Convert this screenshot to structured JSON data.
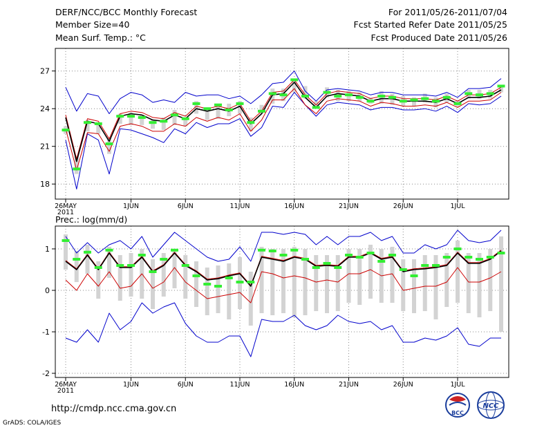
{
  "header": {
    "title": "DERF/NCC/BCC Monthly Forecast",
    "member_size": "Member Size=40",
    "variable": "Mean Surf. Temp.: °C",
    "period": "For 2011/05/26-2011/07/04",
    "start": "Fcst Started Refer Date 2011/05/25",
    "produced": "Fcst Produced Date 2011/05/26"
  },
  "x_axis": {
    "ticks": [
      {
        "day": 0,
        "label": "26MAY"
      },
      {
        "day": 6,
        "label": "1JUN"
      },
      {
        "day": 11,
        "label": "6JUN"
      },
      {
        "day": 16,
        "label": "11JUN"
      },
      {
        "day": 21,
        "label": "16JUN"
      },
      {
        "day": 26,
        "label": "21JUN"
      },
      {
        "day": 31,
        "label": "26JUN"
      },
      {
        "day": 36,
        "label": "1JUL"
      }
    ],
    "year_label": "2011"
  },
  "footer": {
    "url": "http://cmdp.ncc.cma.gov.cn",
    "credit": "GrADS: COLA/IGES",
    "logo_bcc": "BCC",
    "logo_ncc": "NCC"
  },
  "colors": {
    "envelope": "#0000cc",
    "ensemble_mean": "#000000",
    "inner_band": "#cc0000",
    "spread_bar": "#d3d3d3",
    "marker": "#33ee33",
    "grid": "#888888"
  },
  "chart_data": [
    {
      "type": "line",
      "title": "Mean Surf. Temp.: °C",
      "days": 40,
      "ylim": [
        16.8,
        28.8
      ],
      "yticks": [
        18,
        21,
        24,
        27
      ],
      "series": [
        {
          "name": "ensemble-mean",
          "values": [
            23.3,
            19.8,
            23.0,
            22.8,
            21.4,
            23.4,
            23.6,
            23.5,
            23.1,
            23.0,
            23.5,
            23.2,
            24.0,
            23.8,
            24.0,
            23.8,
            24.2,
            22.8,
            23.6,
            25.1,
            25.2,
            26.1,
            24.9,
            24.1,
            25.0,
            25.2,
            25.1,
            25.0,
            24.6,
            24.8,
            24.8,
            24.6,
            24.6,
            24.6,
            24.5,
            24.8,
            24.4,
            24.9,
            24.9,
            25.0,
            25.5
          ]
        },
        {
          "name": "upper-band",
          "values": [
            23.5,
            20.0,
            23.2,
            23.0,
            21.6,
            23.6,
            23.8,
            23.7,
            23.3,
            23.2,
            23.7,
            23.4,
            24.2,
            24.0,
            24.2,
            24.0,
            24.4,
            23.0,
            23.8,
            25.3,
            25.4,
            26.3,
            25.1,
            24.3,
            25.2,
            25.4,
            25.3,
            25.2,
            24.8,
            25.0,
            25.0,
            24.8,
            24.8,
            24.8,
            24.7,
            25.0,
            24.6,
            25.1,
            25.1,
            25.2,
            25.7
          ]
        },
        {
          "name": "lower-band",
          "values": [
            22.4,
            19.1,
            22.1,
            22.0,
            20.6,
            22.6,
            22.8,
            22.6,
            22.2,
            22.2,
            22.8,
            22.6,
            23.3,
            23.0,
            23.3,
            23.1,
            23.6,
            22.2,
            23.1,
            24.7,
            24.7,
            25.6,
            24.3,
            23.6,
            24.6,
            24.8,
            24.7,
            24.6,
            24.2,
            24.5,
            24.4,
            24.2,
            24.2,
            24.3,
            24.2,
            24.5,
            24.1,
            24.6,
            24.6,
            24.7,
            25.3
          ]
        },
        {
          "name": "max-envelope",
          "values": [
            25.7,
            23.8,
            25.2,
            25.0,
            23.6,
            24.8,
            25.3,
            25.1,
            24.5,
            24.7,
            24.5,
            25.3,
            25.0,
            25.1,
            25.1,
            24.8,
            25.0,
            24.4,
            25.1,
            26.0,
            26.1,
            27.0,
            25.4,
            24.6,
            25.5,
            25.6,
            25.5,
            25.4,
            25.1,
            25.3,
            25.3,
            25.1,
            25.1,
            25.1,
            25.0,
            25.3,
            24.9,
            25.6,
            25.6,
            25.7,
            26.4
          ]
        },
        {
          "name": "min-envelope",
          "values": [
            21.5,
            17.6,
            22.0,
            21.5,
            18.8,
            22.4,
            22.3,
            22.0,
            21.7,
            21.3,
            22.4,
            22.0,
            22.9,
            22.5,
            22.8,
            22.8,
            23.2,
            21.8,
            22.5,
            24.2,
            24.1,
            25.3,
            24.3,
            23.4,
            24.3,
            24.5,
            24.4,
            24.3,
            23.9,
            24.1,
            24.1,
            23.9,
            23.9,
            24.0,
            23.8,
            24.2,
            23.7,
            24.4,
            24.3,
            24.4,
            25.0
          ]
        },
        {
          "name": "spread-bar-top",
          "values": [
            22.6,
            20.2,
            23.1,
            22.9,
            21.7,
            23.6,
            23.7,
            23.5,
            23.1,
            23.3,
            23.9,
            23.3,
            24.6,
            23.9,
            24.4,
            24.4,
            24.6,
            23.3,
            24.3,
            25.6,
            25.6,
            26.4,
            25.8,
            24.6,
            25.7,
            25.5,
            25.4,
            25.3,
            24.9,
            25.4,
            25.2,
            25.0,
            24.9,
            25.2,
            24.9,
            25.2,
            24.7,
            25.5,
            25.5,
            25.5,
            25.9
          ]
        },
        {
          "name": "spread-bar-bottom",
          "values": [
            22.0,
            18.8,
            22.2,
            22.0,
            20.4,
            22.8,
            22.7,
            22.7,
            22.4,
            22.3,
            22.7,
            22.6,
            23.6,
            23.1,
            23.2,
            23.4,
            23.6,
            22.2,
            23.6,
            24.4,
            24.6,
            25.3,
            24.8,
            24.2,
            24.9,
            24.6,
            24.6,
            24.6,
            24.4,
            24.4,
            24.3,
            24.2,
            24.2,
            24.5,
            24.1,
            24.5,
            24.2,
            24.8,
            24.8,
            24.8,
            25.3
          ]
        },
        {
          "name": "green-marker",
          "values": [
            22.3,
            19.2,
            22.9,
            22.8,
            21.2,
            23.4,
            23.4,
            23.3,
            22.9,
            23.0,
            23.5,
            23.2,
            24.4,
            24.0,
            24.3,
            23.9,
            24.4,
            22.9,
            23.8,
            25.2,
            25.1,
            26.3,
            25.0,
            24.1,
            25.3,
            25.0,
            25.1,
            24.9,
            24.6,
            25.0,
            24.9,
            24.6,
            24.7,
            24.8,
            24.6,
            24.9,
            24.4,
            25.2,
            25.1,
            25.2,
            25.8
          ]
        }
      ]
    },
    {
      "type": "line",
      "title": "Prec.: log(mm/d)",
      "days": 40,
      "ylim": [
        -2.1,
        1.55
      ],
      "yticks": [
        -2,
        -1,
        0,
        1
      ],
      "series": [
        {
          "name": "ensemble-mean",
          "values": [
            0.7,
            0.5,
            0.85,
            0.5,
            0.9,
            0.55,
            0.55,
            0.8,
            0.45,
            0.6,
            0.9,
            0.6,
            0.45,
            0.25,
            0.28,
            0.35,
            0.4,
            0.1,
            0.8,
            0.75,
            0.7,
            0.8,
            0.75,
            0.58,
            0.6,
            0.58,
            0.8,
            0.8,
            0.9,
            0.75,
            0.8,
            0.45,
            0.5,
            0.52,
            0.55,
            0.6,
            0.9,
            0.65,
            0.65,
            0.75,
            0.95
          ]
        },
        {
          "name": "upper-band",
          "values": [
            0.72,
            0.52,
            0.87,
            0.52,
            0.92,
            0.57,
            0.57,
            0.82,
            0.47,
            0.62,
            0.92,
            0.62,
            0.47,
            0.27,
            0.3,
            0.37,
            0.42,
            0.12,
            0.82,
            0.77,
            0.72,
            0.82,
            0.77,
            0.6,
            0.62,
            0.6,
            0.82,
            0.82,
            0.92,
            0.77,
            0.82,
            0.47,
            0.52,
            0.54,
            0.57,
            0.62,
            0.92,
            0.67,
            0.67,
            0.77,
            0.97
          ]
        },
        {
          "name": "lower-band",
          "values": [
            0.25,
            0.0,
            0.4,
            0.1,
            0.45,
            0.05,
            0.1,
            0.4,
            0.05,
            0.2,
            0.55,
            0.2,
            0.0,
            -0.2,
            -0.15,
            -0.1,
            -0.05,
            -0.3,
            0.45,
            0.4,
            0.3,
            0.35,
            0.3,
            0.2,
            0.25,
            0.2,
            0.4,
            0.4,
            0.5,
            0.35,
            0.4,
            0.0,
            0.05,
            0.1,
            0.1,
            0.2,
            0.55,
            0.2,
            0.2,
            0.3,
            0.45
          ]
        },
        {
          "name": "max-envelope",
          "values": [
            1.3,
            0.9,
            1.15,
            0.9,
            1.1,
            1.2,
            1.0,
            1.3,
            0.8,
            1.1,
            1.4,
            1.2,
            1.0,
            0.8,
            0.7,
            0.75,
            1.05,
            0.7,
            1.4,
            1.4,
            1.35,
            1.4,
            1.35,
            1.1,
            1.3,
            1.1,
            1.3,
            1.3,
            1.4,
            1.2,
            1.3,
            0.9,
            0.9,
            1.1,
            1.0,
            1.1,
            1.45,
            1.2,
            1.15,
            1.2,
            1.45
          ]
        },
        {
          "name": "min-envelope",
          "values": [
            -1.15,
            -1.25,
            -0.95,
            -1.25,
            -0.55,
            -0.95,
            -0.75,
            -0.3,
            -0.55,
            -0.4,
            -0.3,
            -0.8,
            -1.1,
            -1.25,
            -1.25,
            -1.1,
            -1.1,
            -1.6,
            -0.7,
            -0.75,
            -0.75,
            -0.6,
            -0.85,
            -0.95,
            -0.85,
            -0.6,
            -0.75,
            -0.8,
            -0.75,
            -0.95,
            -0.85,
            -1.25,
            -1.25,
            -1.15,
            -1.2,
            -1.1,
            -0.9,
            -1.3,
            -1.35,
            -1.15,
            -1.15
          ]
        },
        {
          "name": "spread-bar-top",
          "values": [
            1.35,
            0.95,
            1.1,
            0.7,
            1.05,
            0.85,
            0.9,
            1.0,
            0.75,
            0.9,
            1.0,
            0.85,
            0.7,
            0.55,
            0.6,
            0.65,
            0.8,
            0.45,
            1.05,
            1.0,
            1.0,
            1.05,
            1.0,
            0.85,
            0.85,
            0.85,
            1.0,
            1.0,
            1.1,
            1.0,
            1.05,
            0.75,
            0.75,
            0.85,
            0.85,
            0.9,
            1.2,
            0.9,
            0.9,
            1.0,
            1.3
          ]
        },
        {
          "name": "spread-bar-bottom",
          "values": [
            0.5,
            0.2,
            0.4,
            -0.2,
            0.3,
            -0.25,
            -0.15,
            -0.2,
            -0.45,
            -0.15,
            0.05,
            -0.2,
            -0.4,
            -0.6,
            -0.55,
            -0.7,
            -0.45,
            -0.85,
            -0.55,
            -0.6,
            -0.55,
            -0.65,
            -0.6,
            -0.5,
            -0.55,
            -0.5,
            -0.3,
            -0.35,
            -0.2,
            -0.3,
            -0.3,
            -0.5,
            -0.55,
            -0.5,
            -0.7,
            -0.4,
            -0.3,
            -0.55,
            -0.65,
            -0.5,
            -1.0
          ]
        },
        {
          "name": "green-marker",
          "values": [
            1.2,
            0.75,
            0.92,
            0.55,
            0.97,
            0.6,
            0.6,
            0.85,
            0.45,
            0.75,
            0.97,
            0.6,
            0.35,
            0.15,
            0.1,
            0.3,
            0.2,
            0.2,
            0.97,
            0.95,
            0.85,
            0.97,
            0.75,
            0.55,
            0.65,
            0.55,
            0.85,
            0.8,
            0.9,
            0.7,
            0.85,
            0.5,
            0.35,
            0.6,
            0.6,
            0.8,
            1.0,
            0.8,
            0.75,
            0.8,
            0.9
          ]
        }
      ]
    }
  ]
}
